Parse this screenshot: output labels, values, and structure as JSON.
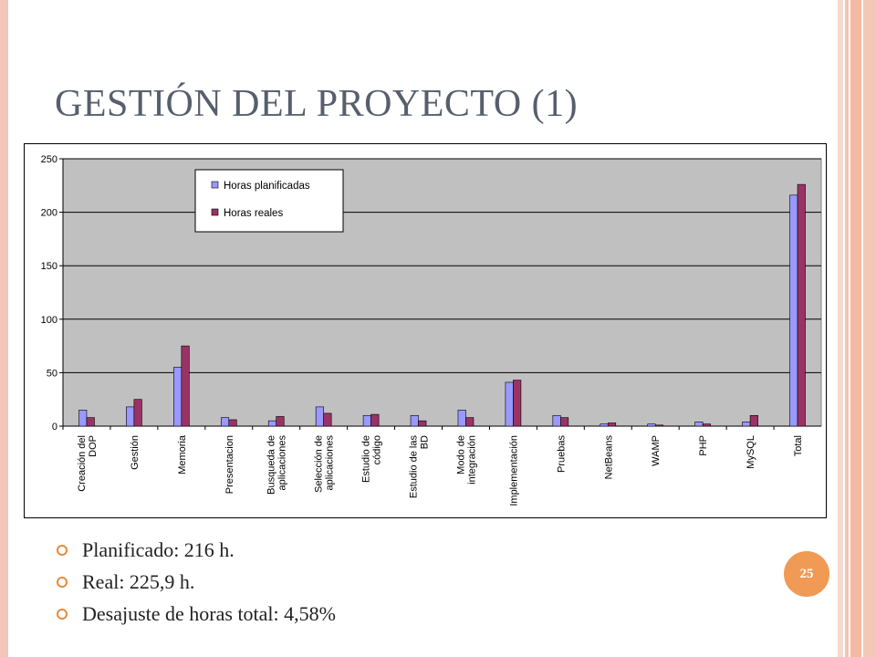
{
  "slide": {
    "title": "GESTIÓN DEL PROYECTO (1)",
    "page_number": "25",
    "bullets": [
      "Planificado: 216 h.",
      "Real: 225,9 h.",
      "Desajuste de horas total:  4,58%"
    ]
  },
  "colors": {
    "plot_bg": "#c0c0c0",
    "series1": "#9999ff",
    "series2": "#993366",
    "accent": "#f09a55"
  },
  "chart_data": {
    "type": "bar",
    "title": "",
    "xlabel": "",
    "ylabel": "",
    "ylim": [
      0,
      250
    ],
    "yticks": [
      0,
      50,
      100,
      150,
      200,
      250
    ],
    "grid": true,
    "legend_position": "top-left",
    "categories": [
      [
        "Creación del",
        "DOP"
      ],
      [
        "Gestión"
      ],
      [
        "Memoria"
      ],
      [
        "Presentacion"
      ],
      [
        "Busqueda de",
        "aplicaciones"
      ],
      [
        "Selección de",
        "aplicaciones"
      ],
      [
        "Estudio de",
        "código"
      ],
      [
        "Estudio de las",
        "BD"
      ],
      [
        "Modo de",
        "integración"
      ],
      [
        "Implementación"
      ],
      [
        "Pruebas"
      ],
      [
        "NetBeans"
      ],
      [
        "WAMP"
      ],
      [
        "PHP"
      ],
      [
        "MySQL"
      ],
      [
        "Total"
      ]
    ],
    "series": [
      {
        "name": "Horas planificadas",
        "values": [
          15,
          18,
          55,
          8,
          5,
          18,
          10,
          10,
          15,
          41,
          10,
          2,
          2,
          4,
          4,
          216
        ]
      },
      {
        "name": "Horas reales",
        "values": [
          8,
          25,
          75,
          6,
          9,
          12,
          11,
          5,
          8,
          43,
          8,
          3,
          1,
          2,
          10,
          226
        ]
      }
    ]
  }
}
